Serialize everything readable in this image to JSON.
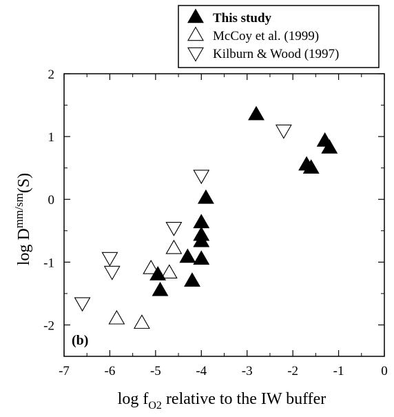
{
  "chart_data": {
    "type": "scatter",
    "panel_label": "(b)",
    "xlim": [
      -7,
      0
    ],
    "ylim": [
      -2.5,
      2
    ],
    "x_ticks": [
      -7,
      -6,
      -5,
      -4,
      -3,
      -2,
      -1,
      0
    ],
    "y_ticks": [
      -2,
      -1,
      0,
      1,
      2
    ],
    "x_tick_labels": [
      "-7",
      "-6",
      "-5",
      "-4",
      "-3",
      "-2",
      "-1",
      "0"
    ],
    "y_tick_labels": [
      "-2",
      "-1",
      "0",
      "1",
      "2"
    ],
    "xlabel": {
      "prefix": "log f",
      "subscript": "O2",
      "suffix": " relative to the IW buffer"
    },
    "ylabel": {
      "prefix": "log D",
      "superscript": "mm/sm",
      "suffix": "(S)"
    },
    "grid": false,
    "legend_position": "top-right",
    "series": [
      {
        "name": "This study",
        "marker": "triangle-up-filled",
        "color": "#000000",
        "points": [
          {
            "x": -2.8,
            "y": 1.35
          },
          {
            "x": -1.3,
            "y": 0.93
          },
          {
            "x": -1.2,
            "y": 0.82
          },
          {
            "x": -1.7,
            "y": 0.55
          },
          {
            "x": -1.6,
            "y": 0.5
          },
          {
            "x": -3.9,
            "y": 0.02
          },
          {
            "x": -4.0,
            "y": -0.37
          },
          {
            "x": -4.0,
            "y": -0.57
          },
          {
            "x": -4.0,
            "y": -0.67
          },
          {
            "x": -4.3,
            "y": -0.92
          },
          {
            "x": -4.0,
            "y": -0.95
          },
          {
            "x": -4.95,
            "y": -1.2
          },
          {
            "x": -4.2,
            "y": -1.3
          },
          {
            "x": -4.9,
            "y": -1.45
          }
        ]
      },
      {
        "name": "McCoy et al. (1999)",
        "marker": "triangle-up-open",
        "color": "#000000",
        "points": [
          {
            "x": -4.6,
            "y": -0.78
          },
          {
            "x": -5.1,
            "y": -1.1
          },
          {
            "x": -4.7,
            "y": -1.17
          },
          {
            "x": -5.85,
            "y": -1.9
          },
          {
            "x": -5.3,
            "y": -1.97
          }
        ]
      },
      {
        "name": "Kilburn & Wood (1997)",
        "marker": "triangle-down-open",
        "color": "#000000",
        "points": [
          {
            "x": -2.2,
            "y": 1.1
          },
          {
            "x": -4.0,
            "y": 0.38
          },
          {
            "x": -4.6,
            "y": -0.45
          },
          {
            "x": -6.0,
            "y": -0.93
          },
          {
            "x": -5.95,
            "y": -1.15
          },
          {
            "x": -6.6,
            "y": -1.65
          }
        ]
      }
    ]
  }
}
